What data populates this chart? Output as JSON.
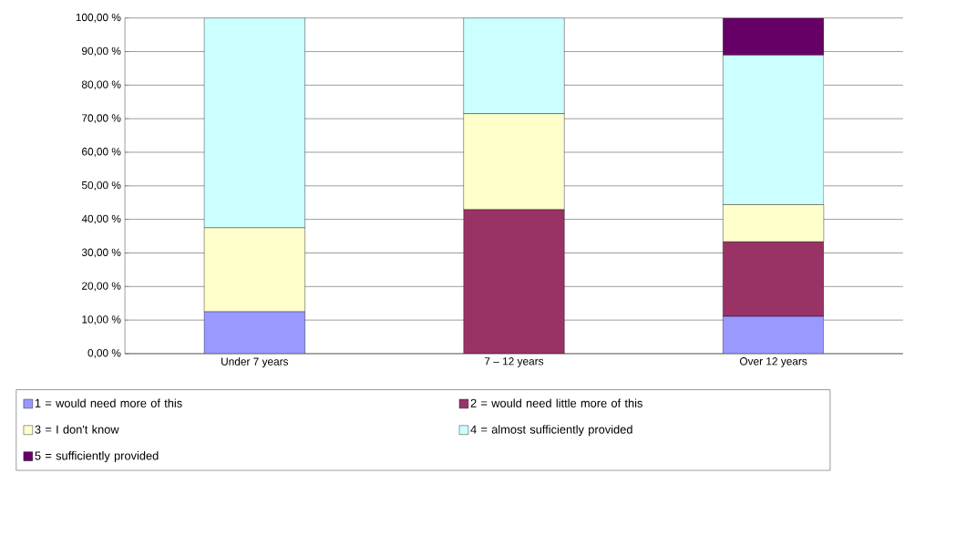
{
  "chart_data": {
    "type": "bar",
    "stacked": true,
    "categories": [
      "Under 7 years",
      "7 – 12 years",
      "Over 12 years"
    ],
    "series": [
      {
        "name": "1 = would need more of this",
        "color": "#9999ff",
        "values": [
          12.5,
          0,
          11.1
        ]
      },
      {
        "name": "2 = would need little more of this",
        "color": "#993366",
        "values": [
          0,
          42.9,
          22.2
        ]
      },
      {
        "name": "3 = I don't know",
        "color": "#ffffcc",
        "values": [
          25,
          28.6,
          11.1
        ]
      },
      {
        "name": "4 = almost sufficiently provided",
        "color": "#ccffff",
        "values": [
          62.5,
          28.5,
          44.5
        ]
      },
      {
        "name": "5 = sufficiently provided",
        "color": "#660066",
        "values": [
          0,
          0,
          11.1
        ]
      }
    ],
    "ylim": [
      0,
      100
    ],
    "yticks": [
      {
        "value": 0,
        "label": "0,00 %"
      },
      {
        "value": 10,
        "label": "10,00 %"
      },
      {
        "value": 20,
        "label": "20,00 %"
      },
      {
        "value": 30,
        "label": "30,00 %"
      },
      {
        "value": 40,
        "label": "40,00 %"
      },
      {
        "value": 50,
        "label": "50,00 %"
      },
      {
        "value": 60,
        "label": "60,00 %"
      },
      {
        "value": 70,
        "label": "70,00 %"
      },
      {
        "value": 80,
        "label": "80,00 %"
      },
      {
        "value": 90,
        "label": "90,00 %"
      },
      {
        "value": 100,
        "label": "100,00 %"
      }
    ],
    "grid": "y",
    "legend": "bottom"
  }
}
